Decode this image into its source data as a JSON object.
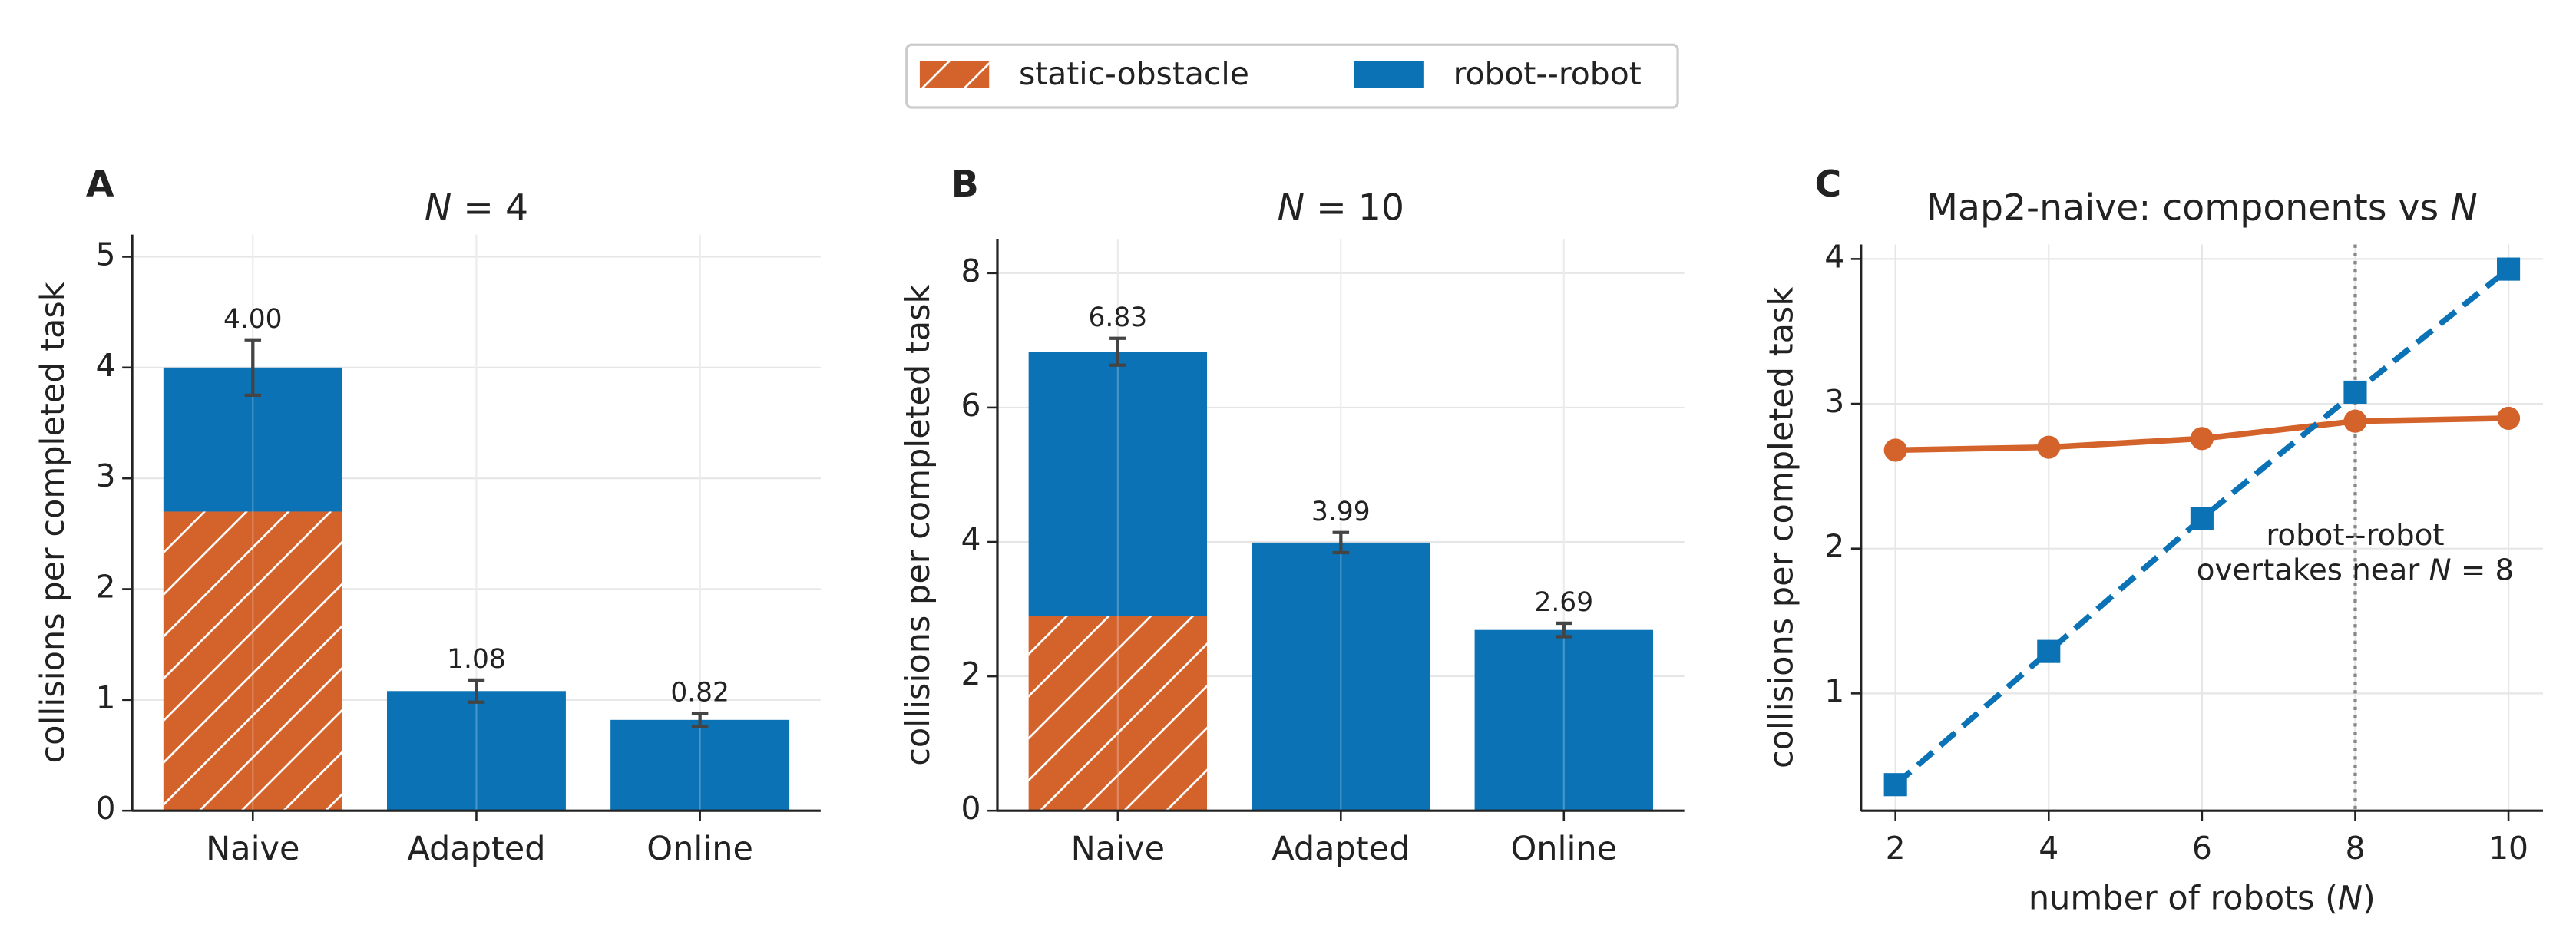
{
  "chart_data": [
    {
      "type": "bar",
      "panel": "A",
      "title": "N = 4",
      "ylabel": "collisions per completed task",
      "categories": [
        "Naive",
        "Adapted",
        "Online"
      ],
      "series": [
        {
          "name": "static-obstacle",
          "color": "#d4622b",
          "hatch": true,
          "values": [
            2.7,
            0,
            0
          ]
        },
        {
          "name": "robot--robot",
          "color": "#0a72b5",
          "values": [
            1.3,
            1.08,
            0.82
          ]
        }
      ],
      "totals": [
        4.0,
        1.08,
        0.82
      ],
      "value_labels": [
        "4.00",
        "1.08",
        "0.82"
      ],
      "errors": [
        0.25,
        0.1,
        0.06
      ],
      "ylim": [
        0,
        5.2
      ],
      "yticks": [
        0,
        1,
        2,
        3,
        4,
        5
      ],
      "grid": true,
      "legend": "upper center"
    },
    {
      "type": "bar",
      "panel": "B",
      "title": "N = 10",
      "ylabel": "collisions per completed task",
      "categories": [
        "Naive",
        "Adapted",
        "Online"
      ],
      "series": [
        {
          "color": "#d4622b",
          "hatch": true,
          "values": [
            2.9,
            0,
            0
          ]
        },
        {
          "color": "#0a72b5",
          "values": [
            3.93,
            3.99,
            2.69
          ]
        }
      ],
      "totals": [
        6.83,
        3.99,
        2.69
      ],
      "value_labels": [
        "6.83",
        "3.99",
        "2.69"
      ],
      "errors": [
        0.2,
        0.15,
        0.1
      ],
      "ylim": [
        0,
        8.5
      ],
      "yticks": [
        0,
        2,
        4,
        6,
        8
      ],
      "grid": true
    },
    {
      "type": "line",
      "panel": "C",
      "title": "Map2-naive: components vs N",
      "ylabel": "collisions per completed task",
      "xlabel": "number of robots (N)",
      "x": [
        2,
        4,
        6,
        8,
        10
      ],
      "series": [
        {
          "color": "#d4622b",
          "marker": "circle",
          "dash": false,
          "values": [
            2.68,
            2.7,
            2.76,
            2.88,
            2.9
          ]
        },
        {
          "color": "#0a72b5",
          "marker": "square",
          "dash": true,
          "values": [
            0.37,
            1.29,
            2.21,
            3.08,
            3.93
          ]
        }
      ],
      "vline": 8,
      "annotation": [
        "robot--robot",
        "overtakes near N = 8"
      ],
      "xlim": [
        1.55,
        10.45
      ],
      "xticks": [
        2,
        4,
        6,
        8,
        10
      ],
      "ylim": [
        0.19,
        4.1
      ],
      "yticks": [
        1,
        2,
        3,
        4
      ],
      "grid": true
    }
  ]
}
